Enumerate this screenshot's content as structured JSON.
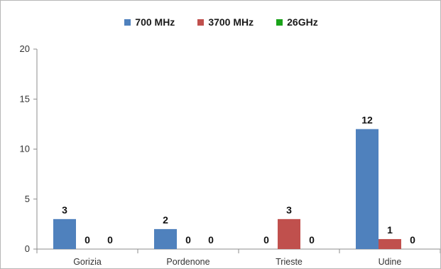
{
  "chart_data": {
    "type": "bar",
    "title": "",
    "xlabel": "",
    "ylabel": "",
    "categories": [
      "Gorizia",
      "Pordenone",
      "Trieste",
      "Udine"
    ],
    "series": [
      {
        "name": "700 MHz",
        "color": "#4f81bd",
        "values": [
          3,
          2,
          0,
          12
        ]
      },
      {
        "name": "3700 MHz",
        "color": "#c0504d",
        "values": [
          0,
          0,
          3,
          1
        ]
      },
      {
        "name": "26GHz",
        "color": "#1aa31a",
        "values": [
          0,
          0,
          0,
          0
        ]
      }
    ],
    "ylim": [
      0,
      20
    ],
    "yticks": [
      0,
      5,
      10,
      15,
      20
    ],
    "grid": false,
    "legend_position": "top",
    "data_labels": true
  }
}
